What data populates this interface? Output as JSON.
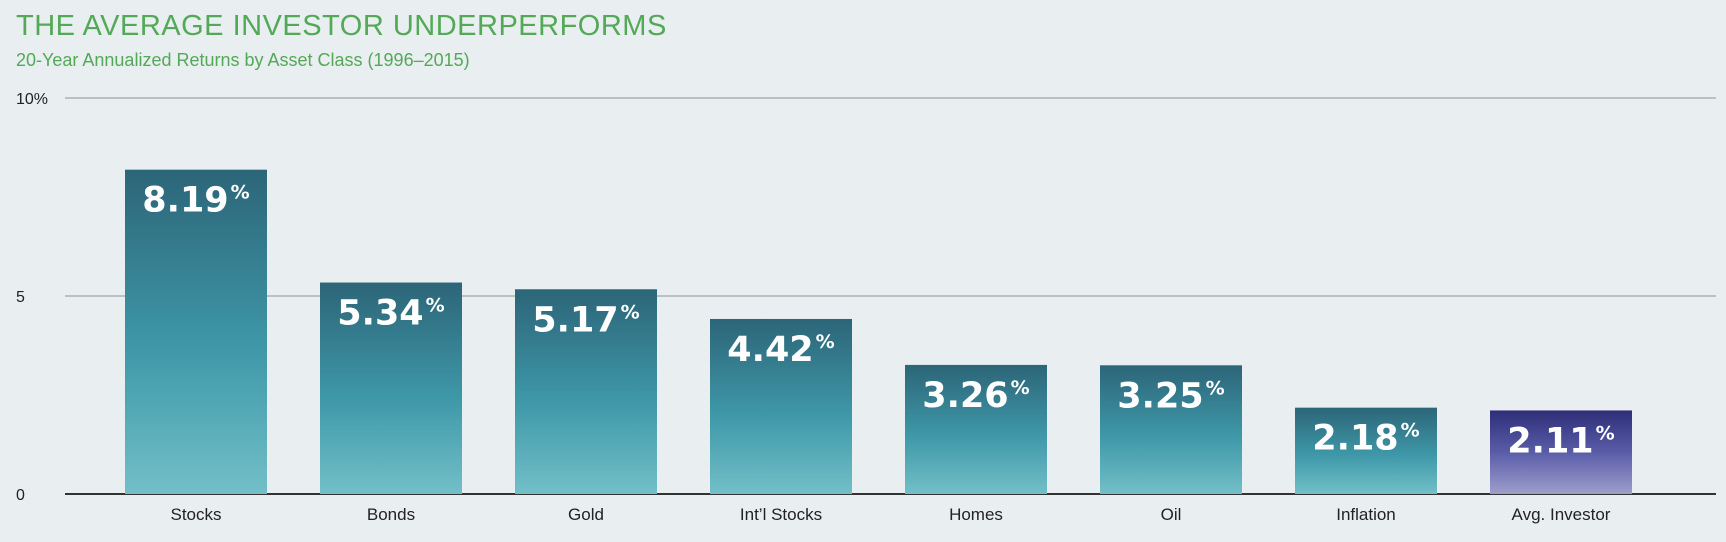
{
  "header": {
    "title": "THE AVERAGE INVESTOR UNDERPERFORMS",
    "subtitle": "20-Year Annualized Returns by Asset Class (1996–2015)"
  },
  "chart_data": {
    "type": "bar",
    "title": "THE AVERAGE INVESTOR UNDERPERFORMS",
    "subtitle": "20-Year Annualized Returns by Asset Class (1996–2015)",
    "xlabel": "",
    "ylabel": "",
    "ylim": [
      0,
      10
    ],
    "yticks": [
      {
        "value": 0,
        "label": "0"
      },
      {
        "value": 5,
        "label": "5"
      },
      {
        "value": 10,
        "label": "10%"
      }
    ],
    "grid": true,
    "categories": [
      "Stocks",
      "Bonds",
      "Gold",
      "Int’l Stocks",
      "Homes",
      "Oil",
      "Inflation",
      "Avg. Investor"
    ],
    "values": [
      8.19,
      5.34,
      5.17,
      4.42,
      3.26,
      3.25,
      2.18,
      2.11
    ],
    "value_labels": [
      "8.19",
      "5.34",
      "5.17",
      "4.42",
      "3.26",
      "3.25",
      "2.18",
      "2.11"
    ],
    "value_suffix": "%",
    "highlight_category": "Avg. Investor",
    "colors": {
      "title": "#53a957",
      "bar_top": "#2c6578",
      "bar_mid": "#3e98a8",
      "bar_bottom": "#72bfc8",
      "highlight_top": "#2e2e78",
      "highlight_mid": "#5a5ca8",
      "highlight_bottom": "#9e9ecc",
      "grid": "#8c9398",
      "axis": "#333333",
      "background": "#e9eef1"
    }
  }
}
